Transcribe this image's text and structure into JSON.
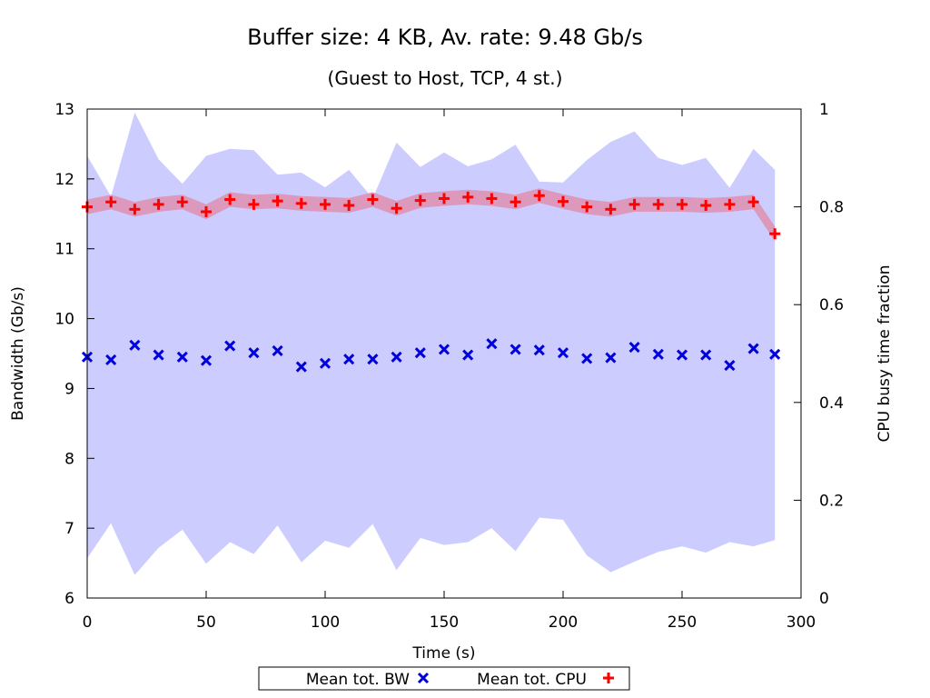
{
  "chart_data": {
    "type": "scatter",
    "title": "Buffer size: 4 KB, Av. rate: 9.48 Gb/s",
    "subtitle": "(Guest to Host, TCP, 4 st.)",
    "xlabel": "Time (s)",
    "ylabel": "Bandwidth (Gb/s)",
    "y2label": "CPU busy time fraction",
    "xlim": [
      0,
      300
    ],
    "ylim": [
      6,
      13
    ],
    "y2lim": [
      0,
      1
    ],
    "xticks": [
      "0",
      "50",
      "100",
      "150",
      "200",
      "250",
      "300"
    ],
    "yticks": [
      "6",
      "7",
      "8",
      "9",
      "10",
      "11",
      "12",
      "13"
    ],
    "y2ticks": [
      "0",
      "0.2",
      "0.4",
      "0.6",
      "0.8",
      "1"
    ],
    "grid": false,
    "legend_position": "bottom-center",
    "x": [
      0,
      10,
      20,
      30,
      40,
      50,
      60,
      70,
      80,
      90,
      100,
      110,
      120,
      130,
      140,
      150,
      160,
      170,
      180,
      190,
      200,
      210,
      220,
      230,
      240,
      250,
      260,
      270,
      280,
      289
    ],
    "bw_band_upper": [
      12.33,
      11.75,
      12.95,
      12.28,
      11.93,
      12.33,
      12.43,
      12.41,
      12.06,
      12.09,
      11.88,
      12.13,
      11.72,
      12.52,
      12.17,
      12.38,
      12.18,
      12.28,
      12.49,
      11.96,
      11.95,
      12.27,
      12.53,
      12.68,
      12.3,
      12.2,
      12.3,
      11.87,
      12.43,
      12.13
    ],
    "bw_band_lower": [
      6.57,
      7.07,
      6.33,
      6.72,
      6.98,
      6.49,
      6.8,
      6.63,
      7.04,
      6.51,
      6.82,
      6.72,
      7.06,
      6.4,
      6.86,
      6.76,
      6.8,
      7.0,
      6.67,
      7.15,
      7.12,
      6.61,
      6.37,
      6.52,
      6.66,
      6.74,
      6.65,
      6.8,
      6.74,
      6.83
    ],
    "cpu_band_upper": [
      0.815,
      0.825,
      0.81,
      0.82,
      0.825,
      0.805,
      0.83,
      0.825,
      0.827,
      0.822,
      0.82,
      0.818,
      0.83,
      0.812,
      0.828,
      0.832,
      0.835,
      0.832,
      0.825,
      0.838,
      0.826,
      0.815,
      0.81,
      0.82,
      0.82,
      0.82,
      0.818,
      0.82,
      0.825,
      0.76
    ],
    "cpu_band_lower": [
      0.785,
      0.795,
      0.78,
      0.79,
      0.795,
      0.775,
      0.8,
      0.795,
      0.797,
      0.792,
      0.79,
      0.788,
      0.8,
      0.782,
      0.798,
      0.802,
      0.805,
      0.802,
      0.795,
      0.808,
      0.796,
      0.785,
      0.78,
      0.79,
      0.79,
      0.79,
      0.788,
      0.79,
      0.795,
      0.73
    ],
    "band_colors": {
      "bw_band": "#ccccff",
      "cpu_band": "#dd99bb"
    },
    "series": [
      {
        "name": "Mean tot. BW",
        "axis": "y",
        "marker": "x",
        "color": "#0000dd",
        "values": [
          9.45,
          9.41,
          9.62,
          9.48,
          9.45,
          9.4,
          9.61,
          9.51,
          9.54,
          9.31,
          9.36,
          9.42,
          9.42,
          9.45,
          9.51,
          9.56,
          9.48,
          9.64,
          9.56,
          9.55,
          9.51,
          9.43,
          9.44,
          9.59,
          9.49,
          9.48,
          9.48,
          9.33,
          9.57,
          9.49
        ]
      },
      {
        "name": "Mean tot. CPU",
        "axis": "y2",
        "marker": "plus",
        "color": "#ff0000",
        "values": [
          0.8,
          0.81,
          0.795,
          0.805,
          0.81,
          0.79,
          0.815,
          0.805,
          0.812,
          0.807,
          0.805,
          0.803,
          0.815,
          0.797,
          0.813,
          0.817,
          0.82,
          0.817,
          0.81,
          0.823,
          0.811,
          0.8,
          0.795,
          0.805,
          0.805,
          0.805,
          0.803,
          0.805,
          0.81,
          0.745
        ]
      }
    ]
  }
}
